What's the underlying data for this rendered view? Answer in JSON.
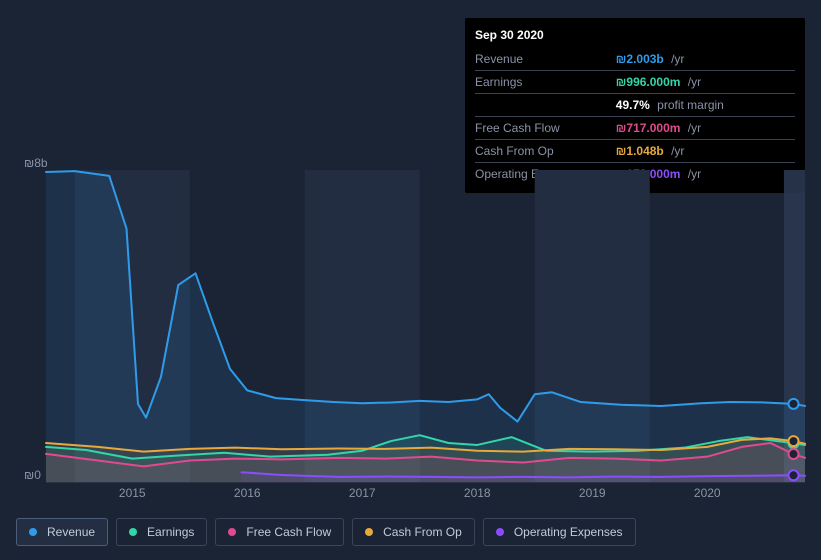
{
  "currency_symbol": "₪",
  "tooltip": {
    "date": "Sep 30 2020",
    "rows": [
      {
        "key": "revenue",
        "label": "Revenue",
        "value": "2.003b",
        "color": "#2f9ceb",
        "suffix": "/yr"
      },
      {
        "key": "earnings",
        "label": "Earnings",
        "value": "996.000m",
        "color": "#33d6a9",
        "suffix": "/yr"
      },
      {
        "key": "margin",
        "label": "",
        "value": "49.7%",
        "color": "#ffffff",
        "suffix": "profit margin",
        "no_currency": true
      },
      {
        "key": "fcf",
        "label": "Free Cash Flow",
        "value": "717.000m",
        "color": "#e24a8f",
        "suffix": "/yr"
      },
      {
        "key": "cfo",
        "label": "Cash From Op",
        "value": "1.048b",
        "color": "#e7a83c",
        "suffix": "/yr"
      },
      {
        "key": "opex",
        "label": "Operating Expenses",
        "value": "172.000m",
        "color": "#8a4dff",
        "suffix": "/yr"
      }
    ]
  },
  "chart": {
    "type": "area-line",
    "background_color": "#1b2434",
    "plot_bgcolor_bar": "#222d41",
    "hover_bar_color": "#2a3750",
    "grid_color": "#2b3446",
    "ylabel_top": "₪8b",
    "ylabel_bottom": "₪0",
    "yaxis": {
      "min": 0,
      "max": 8,
      "unit": "b"
    },
    "xaxis": {
      "ticks": [
        "2015",
        "2016",
        "2017",
        "2018",
        "2019",
        "2020"
      ],
      "domain_min": 2014.25,
      "domain_max": 2020.85
    },
    "cursor_x": 2020.75,
    "series": [
      {
        "key": "revenue",
        "label": "Revenue",
        "color": "#2f9ceb",
        "fill_opacity": 0.12,
        "line_width": 2,
        "active": true,
        "points": [
          [
            2014.25,
            7.95
          ],
          [
            2014.5,
            7.97
          ],
          [
            2014.8,
            7.85
          ],
          [
            2014.95,
            6.5
          ],
          [
            2015.05,
            2.0
          ],
          [
            2015.12,
            1.65
          ],
          [
            2015.25,
            2.7
          ],
          [
            2015.4,
            5.05
          ],
          [
            2015.55,
            5.35
          ],
          [
            2015.7,
            4.1
          ],
          [
            2015.85,
            2.9
          ],
          [
            2016.0,
            2.35
          ],
          [
            2016.25,
            2.15
          ],
          [
            2016.5,
            2.1
          ],
          [
            2016.75,
            2.05
          ],
          [
            2017.0,
            2.02
          ],
          [
            2017.25,
            2.04
          ],
          [
            2017.5,
            2.08
          ],
          [
            2017.75,
            2.05
          ],
          [
            2018.0,
            2.12
          ],
          [
            2018.1,
            2.25
          ],
          [
            2018.2,
            1.9
          ],
          [
            2018.35,
            1.55
          ],
          [
            2018.5,
            2.25
          ],
          [
            2018.65,
            2.3
          ],
          [
            2018.9,
            2.05
          ],
          [
            2019.25,
            1.98
          ],
          [
            2019.6,
            1.95
          ],
          [
            2019.95,
            2.02
          ],
          [
            2020.2,
            2.05
          ],
          [
            2020.5,
            2.04
          ],
          [
            2020.75,
            2.003
          ],
          [
            2020.85,
            1.95
          ]
        ]
      },
      {
        "key": "earnings",
        "label": "Earnings",
        "color": "#33d6a9",
        "fill_opacity": 0.12,
        "line_width": 2,
        "points": [
          [
            2014.25,
            0.9
          ],
          [
            2014.6,
            0.82
          ],
          [
            2015.0,
            0.6
          ],
          [
            2015.4,
            0.68
          ],
          [
            2015.8,
            0.75
          ],
          [
            2016.2,
            0.65
          ],
          [
            2016.7,
            0.7
          ],
          [
            2017.0,
            0.8
          ],
          [
            2017.25,
            1.05
          ],
          [
            2017.5,
            1.2
          ],
          [
            2017.75,
            1.0
          ],
          [
            2018.0,
            0.95
          ],
          [
            2018.3,
            1.15
          ],
          [
            2018.6,
            0.8
          ],
          [
            2019.0,
            0.78
          ],
          [
            2019.4,
            0.8
          ],
          [
            2019.8,
            0.88
          ],
          [
            2020.1,
            1.05
          ],
          [
            2020.35,
            1.15
          ],
          [
            2020.6,
            1.05
          ],
          [
            2020.75,
            0.996
          ],
          [
            2020.85,
            0.95
          ]
        ]
      },
      {
        "key": "fcf",
        "label": "Free Cash Flow",
        "color": "#e24a8f",
        "fill_opacity": 0.12,
        "line_width": 2,
        "points": [
          [
            2014.25,
            0.72
          ],
          [
            2014.7,
            0.55
          ],
          [
            2015.1,
            0.4
          ],
          [
            2015.5,
            0.55
          ],
          [
            2015.9,
            0.6
          ],
          [
            2016.3,
            0.58
          ],
          [
            2016.8,
            0.62
          ],
          [
            2017.2,
            0.6
          ],
          [
            2017.6,
            0.65
          ],
          [
            2018.0,
            0.55
          ],
          [
            2018.4,
            0.5
          ],
          [
            2018.8,
            0.62
          ],
          [
            2019.2,
            0.6
          ],
          [
            2019.6,
            0.55
          ],
          [
            2020.0,
            0.65
          ],
          [
            2020.3,
            0.9
          ],
          [
            2020.55,
            1.0
          ],
          [
            2020.75,
            0.717
          ],
          [
            2020.85,
            0.62
          ]
        ]
      },
      {
        "key": "cfo",
        "label": "Cash From Op",
        "color": "#e7a83c",
        "fill_opacity": 0.1,
        "line_width": 2,
        "points": [
          [
            2014.25,
            1.0
          ],
          [
            2014.7,
            0.9
          ],
          [
            2015.1,
            0.78
          ],
          [
            2015.5,
            0.85
          ],
          [
            2015.9,
            0.88
          ],
          [
            2016.3,
            0.84
          ],
          [
            2016.8,
            0.86
          ],
          [
            2017.2,
            0.85
          ],
          [
            2017.6,
            0.88
          ],
          [
            2018.0,
            0.8
          ],
          [
            2018.4,
            0.78
          ],
          [
            2018.8,
            0.85
          ],
          [
            2019.2,
            0.84
          ],
          [
            2019.6,
            0.82
          ],
          [
            2020.0,
            0.9
          ],
          [
            2020.3,
            1.08
          ],
          [
            2020.55,
            1.12
          ],
          [
            2020.75,
            1.048
          ],
          [
            2020.85,
            0.98
          ]
        ]
      },
      {
        "key": "opex",
        "label": "Operating Expenses",
        "color": "#8a4dff",
        "fill_opacity": 0.1,
        "line_width": 2,
        "points": [
          [
            2015.95,
            0.25
          ],
          [
            2016.3,
            0.18
          ],
          [
            2016.8,
            0.13
          ],
          [
            2017.2,
            0.14
          ],
          [
            2017.6,
            0.13
          ],
          [
            2018.0,
            0.12
          ],
          [
            2018.4,
            0.13
          ],
          [
            2018.8,
            0.12
          ],
          [
            2019.2,
            0.14
          ],
          [
            2019.6,
            0.13
          ],
          [
            2020.0,
            0.15
          ],
          [
            2020.4,
            0.16
          ],
          [
            2020.75,
            0.172
          ],
          [
            2020.85,
            0.16
          ]
        ]
      }
    ]
  },
  "legend": [
    {
      "key": "revenue",
      "label": "Revenue",
      "color": "#2f9ceb",
      "active": true
    },
    {
      "key": "earnings",
      "label": "Earnings",
      "color": "#33d6a9",
      "active": false
    },
    {
      "key": "fcf",
      "label": "Free Cash Flow",
      "color": "#e24a8f",
      "active": false
    },
    {
      "key": "cfo",
      "label": "Cash From Op",
      "color": "#e7a83c",
      "active": false
    },
    {
      "key": "opex",
      "label": "Operating Expenses",
      "color": "#8a4dff",
      "active": false
    }
  ]
}
